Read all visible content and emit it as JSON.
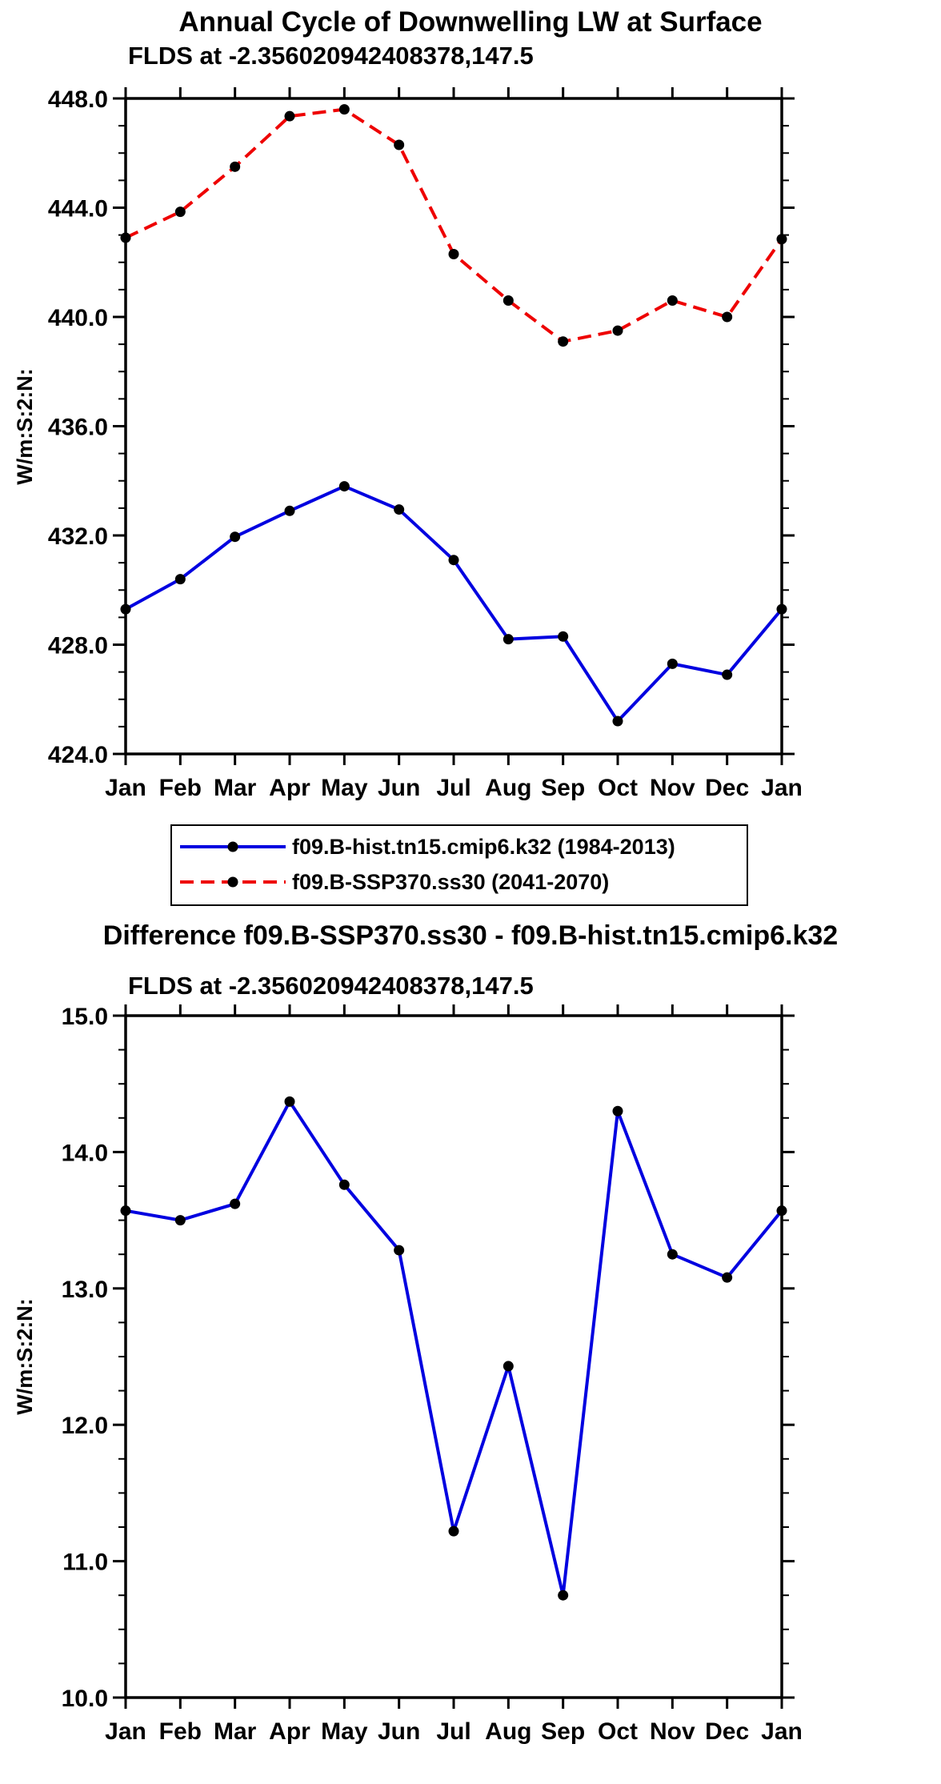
{
  "chart_data": [
    {
      "type": "line",
      "title": "Annual Cycle of Downwelling LW at Surface",
      "subtitle": "FLDS at -2.356020942408378,147.5",
      "xlabel": "",
      "ylabel": "W/m:S:2:N:",
      "categories": [
        "Jan",
        "Feb",
        "Mar",
        "Apr",
        "May",
        "Jun",
        "Jul",
        "Aug",
        "Sep",
        "Oct",
        "Nov",
        "Dec",
        "Jan"
      ],
      "series": [
        {
          "name": "f09.B-hist.tn15.cmip6.k32 (1984-2013)",
          "color": "#0000e0",
          "style": "solid",
          "values": [
            429.3,
            430.4,
            431.95,
            432.9,
            433.8,
            432.95,
            431.1,
            428.2,
            428.3,
            425.2,
            427.3,
            426.9,
            429.3
          ]
        },
        {
          "name": "f09.B-SSP370.ss30 (2041-2070)",
          "color": "#ee0000",
          "style": "dashed",
          "values": [
            442.9,
            443.85,
            445.5,
            447.35,
            447.6,
            446.3,
            442.3,
            440.6,
            439.1,
            439.5,
            440.6,
            440.0,
            442.85
          ]
        }
      ],
      "ylim": [
        424.0,
        448.0
      ],
      "ytick_step": 4.0,
      "minor_per_major": 3,
      "marker_color": "#000000",
      "grid": false,
      "legend_position": "boxed-below-plot"
    },
    {
      "type": "line",
      "title": "Difference f09.B-SSP370.ss30 - f09.B-hist.tn15.cmip6.k32",
      "subtitle": "FLDS at -2.356020942408378,147.5",
      "xlabel": "",
      "ylabel": "W/m:S:2:N:",
      "categories": [
        "Jan",
        "Feb",
        "Mar",
        "Apr",
        "May",
        "Jun",
        "Jul",
        "Aug",
        "Sep",
        "Oct",
        "Nov",
        "Dec",
        "Jan"
      ],
      "series": [
        {
          "name": "difference",
          "color": "#0000e0",
          "style": "solid",
          "values": [
            13.57,
            13.5,
            13.62,
            14.37,
            13.76,
            13.28,
            11.22,
            12.43,
            10.75,
            14.3,
            13.25,
            13.08,
            13.57
          ]
        }
      ],
      "ylim": [
        10.0,
        15.0
      ],
      "ytick_step": 1.0,
      "minor_per_major": 3,
      "marker_color": "#000000",
      "grid": false,
      "legend_position": "none"
    }
  ]
}
